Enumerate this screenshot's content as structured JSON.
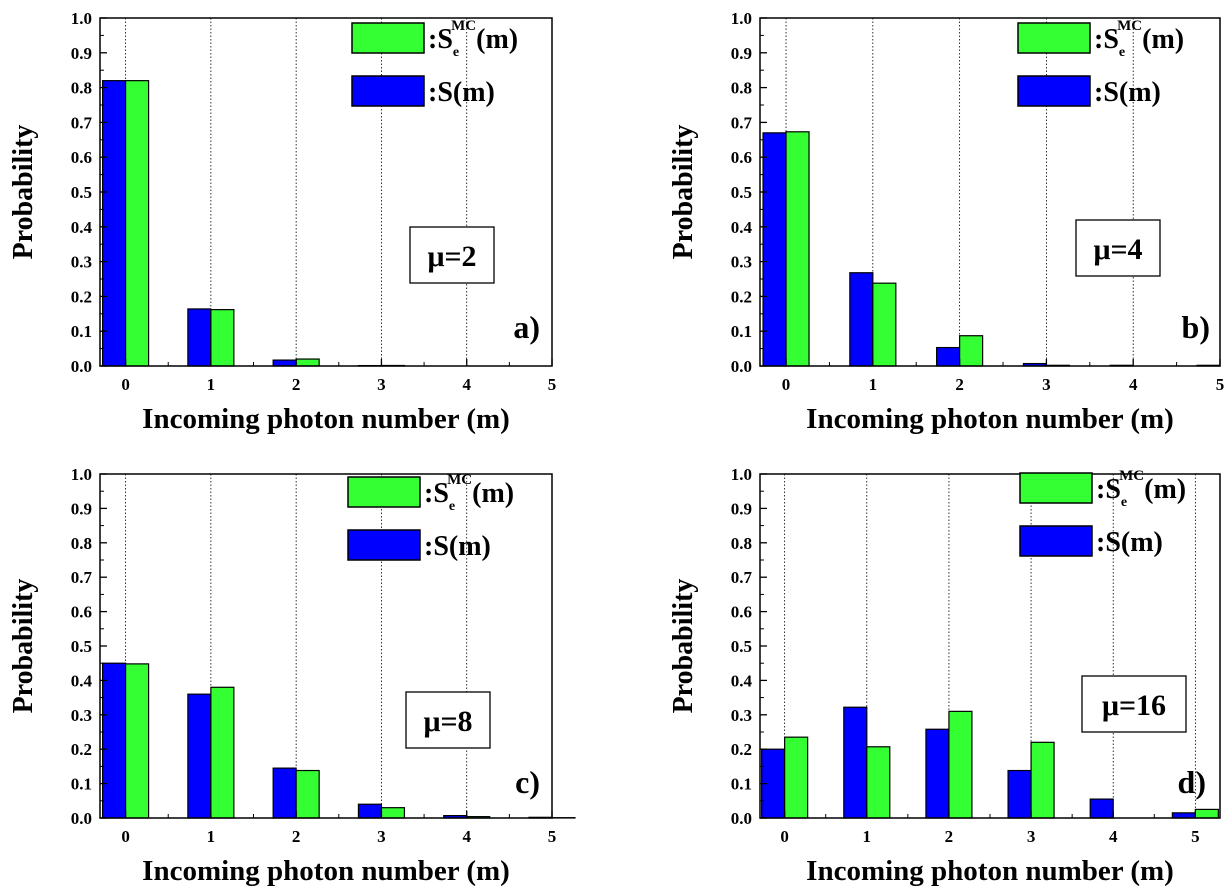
{
  "colors": {
    "green": "#33ff33",
    "blue": "#0000ff",
    "axis": "#000000",
    "grid": "#000000"
  },
  "chart_data": [
    {
      "type": "bar",
      "panel_label": "a)",
      "annotation": "μ=2",
      "xlabel": "Incoming photon number (m)",
      "ylabel": "Probability",
      "ylim": [
        0,
        1.0
      ],
      "xlim": [
        -0.3,
        5
      ],
      "x_ticks": [
        "0",
        "1",
        "2",
        "3",
        "4",
        "5"
      ],
      "y_ticks": [
        "0.0",
        "0.1",
        "0.2",
        "0.3",
        "0.4",
        "0.5",
        "0.6",
        "0.7",
        "0.8",
        "0.9",
        "1.0"
      ],
      "grid": "vertical dotted at integer x",
      "legend_position": "top-right",
      "categories": [
        0,
        1,
        2,
        3,
        4,
        5
      ],
      "series": [
        {
          "name_main": "S",
          "name_sub": "e",
          "name_sup": "MC",
          "name_suffix": "(m)",
          "legend_prefix": ":",
          "color": "#33ff33",
          "values": [
            0.82,
            0.162,
            0.02,
            0.0015,
            0.0005,
            0.0003
          ]
        },
        {
          "name_main": "S",
          "name_sub": "",
          "name_sup": "",
          "name_suffix": "(m)",
          "legend_prefix": ":",
          "color": "#0000ff",
          "values": [
            0.82,
            0.164,
            0.017,
            0.0012,
            0.0004,
            0.0002
          ]
        }
      ]
    },
    {
      "type": "bar",
      "panel_label": "b)",
      "annotation": "μ=4",
      "xlabel": "Incoming photon number (m)",
      "ylabel": "Probability",
      "ylim": [
        0,
        1.0
      ],
      "xlim": [
        -0.3,
        5
      ],
      "x_ticks": [
        "0",
        "1",
        "2",
        "3",
        "4",
        "5"
      ],
      "y_ticks": [
        "0.0",
        "0.1",
        "0.2",
        "0.3",
        "0.4",
        "0.5",
        "0.6",
        "0.7",
        "0.8",
        "0.9",
        "1.0"
      ],
      "grid": "vertical dotted at integer x",
      "legend_position": "top-right",
      "categories": [
        0,
        1,
        2,
        3,
        4,
        5
      ],
      "series": [
        {
          "name_main": "S",
          "name_sub": "e",
          "name_sup": "MC",
          "name_suffix": "(m)",
          "legend_prefix": ":",
          "color": "#33ff33",
          "values": [
            0.673,
            0.238,
            0.087,
            0.002,
            0.0008,
            0.0005
          ]
        },
        {
          "name_main": "S",
          "name_sub": "",
          "name_sup": "",
          "name_suffix": "(m)",
          "legend_prefix": ":",
          "color": "#0000ff",
          "values": [
            0.67,
            0.268,
            0.053,
            0.007,
            0.002,
            0.002
          ]
        }
      ]
    },
    {
      "type": "bar",
      "panel_label": "c)",
      "annotation": "μ=8",
      "xlabel": "Incoming photon number (m)",
      "ylabel": "Probability",
      "ylim": [
        0,
        1.0
      ],
      "xlim": [
        -0.3,
        5
      ],
      "x_ticks": [
        "0",
        "1",
        "2",
        "3",
        "4",
        "5"
      ],
      "y_ticks": [
        "0.0",
        "0.1",
        "0.2",
        "0.3",
        "0.4",
        "0.5",
        "0.6",
        "0.7",
        "0.8",
        "0.9",
        "1.0"
      ],
      "grid": "vertical dotted at integer x",
      "legend_position": "top-right",
      "categories": [
        0,
        1,
        2,
        3,
        4,
        5
      ],
      "series": [
        {
          "name_main": "S",
          "name_sub": "e",
          "name_sup": "MC",
          "name_suffix": "(m)",
          "legend_prefix": ":",
          "color": "#33ff33",
          "values": [
            0.448,
            0.38,
            0.138,
            0.03,
            0.004,
            0.001
          ]
        },
        {
          "name_main": "S",
          "name_sub": "",
          "name_sup": "",
          "name_suffix": "(m)",
          "legend_prefix": ":",
          "color": "#0000ff",
          "values": [
            0.45,
            0.36,
            0.145,
            0.04,
            0.007,
            0.002
          ]
        }
      ]
    },
    {
      "type": "bar",
      "panel_label": "d)",
      "annotation": "μ=16",
      "xlabel": "Incoming photon number (m)",
      "ylabel": "Probability",
      "ylim": [
        0,
        1.0
      ],
      "xlim": [
        -0.3,
        5.3
      ],
      "x_ticks": [
        "0",
        "1",
        "2",
        "3",
        "4",
        "5"
      ],
      "y_ticks": [
        "0.0",
        "0.1",
        "0.2",
        "0.3",
        "0.4",
        "0.5",
        "0.6",
        "0.7",
        "0.8",
        "0.9",
        "1.0"
      ],
      "grid": "vertical dotted at integer x",
      "legend_position": "top-right",
      "categories": [
        0,
        1,
        2,
        3,
        4,
        5
      ],
      "series": [
        {
          "name_main": "S",
          "name_sub": "e",
          "name_sup": "MC",
          "name_suffix": "(m)",
          "legend_prefix": ":",
          "color": "#33ff33",
          "values": [
            0.235,
            0.207,
            0.31,
            0.22,
            0.0,
            0.025
          ]
        },
        {
          "name_main": "S",
          "name_sub": "",
          "name_sup": "",
          "name_suffix": "(m)",
          "legend_prefix": ":",
          "color": "#0000ff",
          "values": [
            0.2,
            0.322,
            0.258,
            0.138,
            0.055,
            0.015
          ]
        }
      ]
    }
  ]
}
